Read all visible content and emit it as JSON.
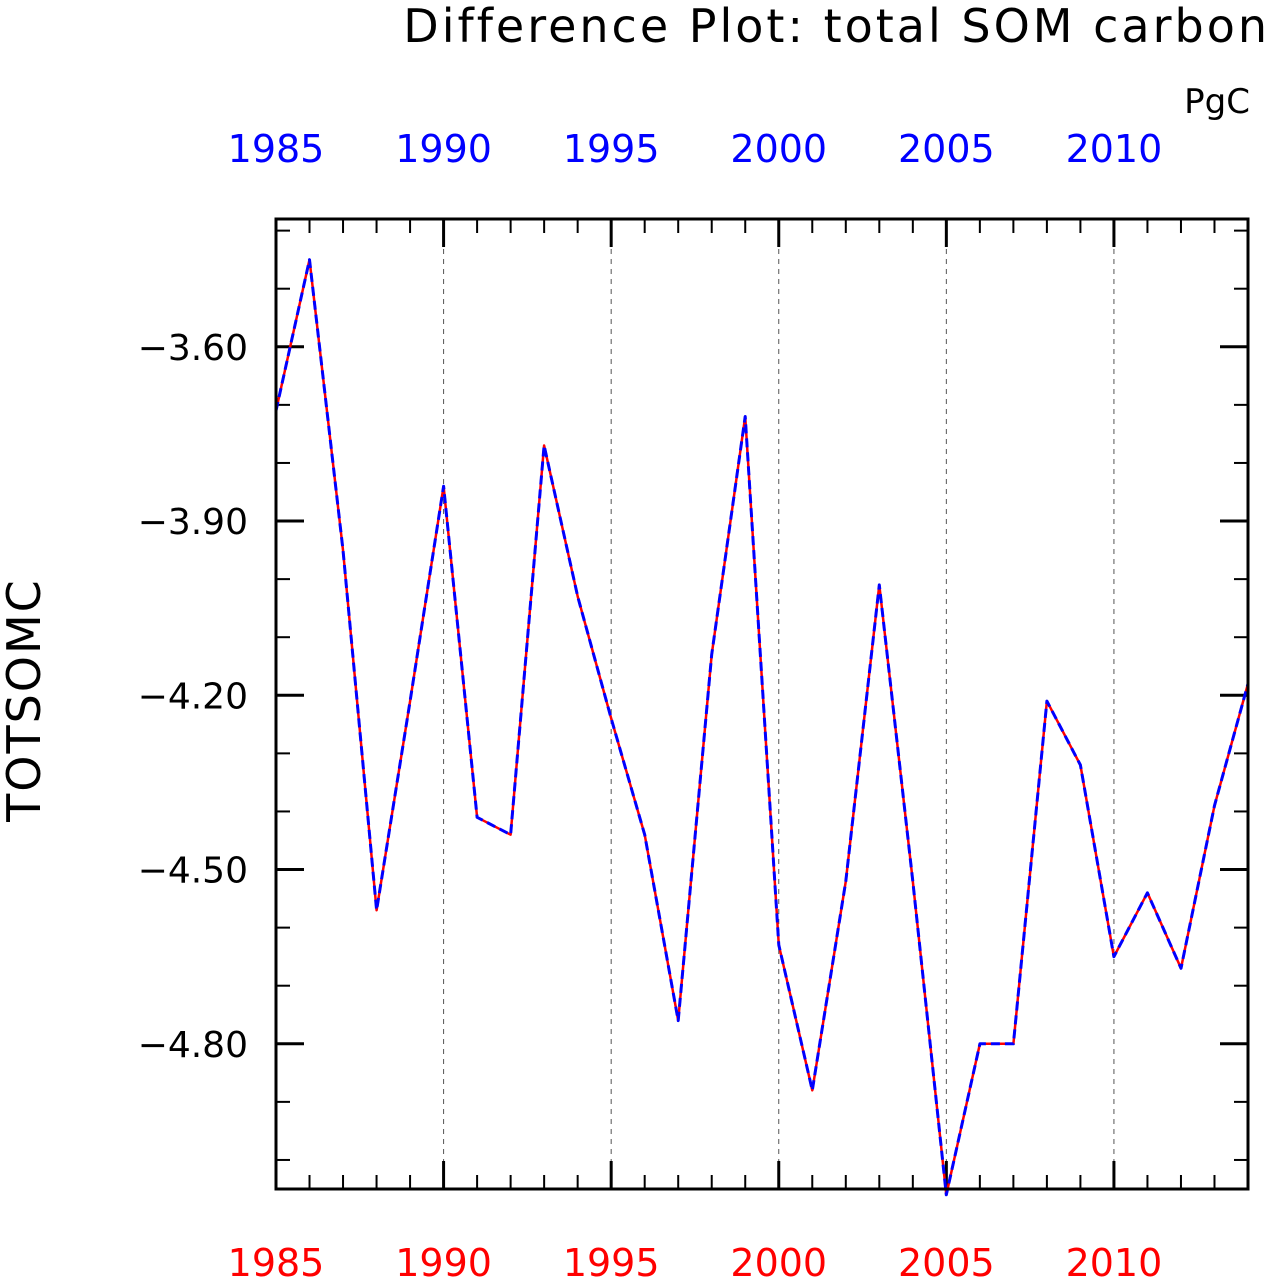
{
  "chart_data": {
    "type": "line",
    "title": "Difference Plot: total SOM carbon",
    "units": "PgC",
    "ylabel": "TOTSOMC",
    "xlim": [
      1985,
      2014
    ],
    "ylim": [
      -5.05,
      -3.38
    ],
    "x_major_ticks": [
      1985,
      1990,
      1995,
      2000,
      2005,
      2010
    ],
    "x_tick_labels": [
      "1985",
      "1990",
      "1995",
      "2000",
      "2005",
      "2010"
    ],
    "y_major_ticks": [
      -3.6,
      -3.9,
      -4.2,
      -4.5,
      -4.8
    ],
    "y_tick_labels": [
      "−3.60",
      "−3.90",
      "−4.20",
      "−4.50",
      "−4.80"
    ],
    "grid": "vertical-dashed-at-major-x",
    "x_top_color": "#0000ff",
    "x_bottom_color": "#ff0000",
    "series": [
      {
        "color": "#ff0000",
        "style": "solid",
        "x": [
          1985,
          1986,
          1987,
          1988,
          1989,
          1990,
          1991,
          1992,
          1993,
          1994,
          1995,
          1996,
          1997,
          1998,
          1999,
          2000,
          2001,
          2002,
          2003,
          2004,
          2005,
          2006,
          2007,
          2008,
          2009,
          2010,
          2011,
          2012,
          2013,
          2014
        ],
        "values": [
          -3.71,
          -3.45,
          -3.95,
          -4.57,
          -4.21,
          -3.84,
          -4.41,
          -4.44,
          -3.77,
          -4.03,
          -4.24,
          -4.44,
          -4.76,
          -4.13,
          -3.72,
          -4.63,
          -4.88,
          -4.52,
          -4.01,
          -4.52,
          -5.06,
          -4.8,
          -4.8,
          -4.21,
          -4.32,
          -4.65,
          -4.54,
          -4.67,
          -4.39,
          -4.18
        ]
      },
      {
        "color": "#0000ff",
        "style": "dashed",
        "x": [
          1985,
          1986,
          1987,
          1988,
          1989,
          1990,
          1991,
          1992,
          1993,
          1994,
          1995,
          1996,
          1997,
          1998,
          1999,
          2000,
          2001,
          2002,
          2003,
          2004,
          2005,
          2006,
          2007,
          2008,
          2009,
          2010,
          2011,
          2012,
          2013,
          2014
        ],
        "values": [
          -3.71,
          -3.45,
          -3.95,
          -4.57,
          -4.21,
          -3.84,
          -4.41,
          -4.44,
          -3.77,
          -4.03,
          -4.24,
          -4.44,
          -4.76,
          -4.13,
          -3.72,
          -4.63,
          -4.88,
          -4.52,
          -4.01,
          -4.52,
          -5.06,
          -4.8,
          -4.8,
          -4.21,
          -4.32,
          -4.65,
          -4.54,
          -4.67,
          -4.39,
          -4.18
        ]
      }
    ]
  }
}
